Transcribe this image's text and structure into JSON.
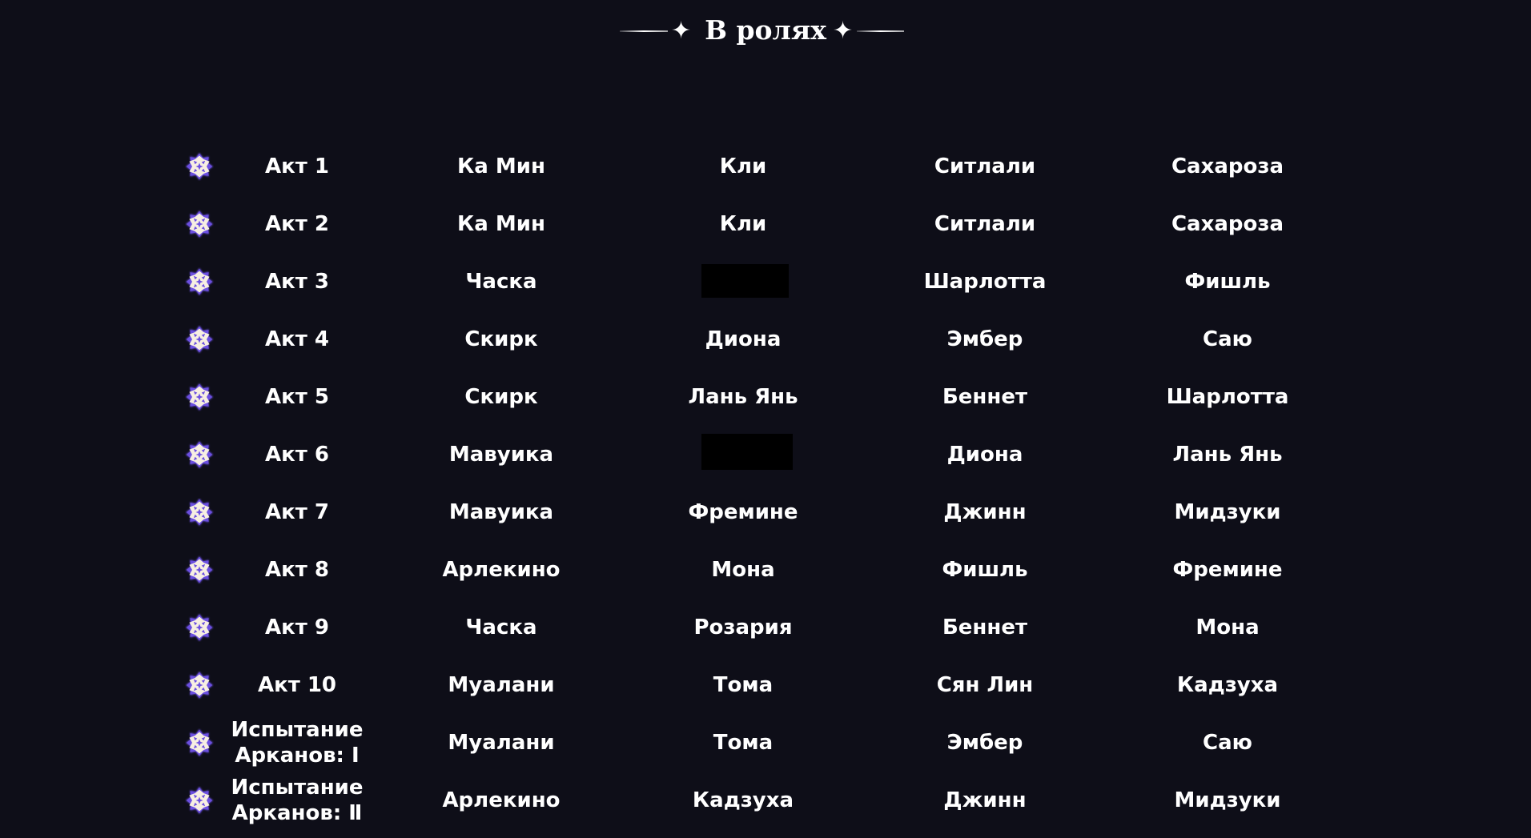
{
  "header": {
    "title": "В ролях",
    "decoration_icon": "sparkle-star-icon"
  },
  "colors": {
    "background": "#0e0e18",
    "icon_purple": "#6b4fe0",
    "icon_cream": "#f7efe2"
  },
  "rows": [
    {
      "label": "Акт 1",
      "cast": [
        "Ка Мин",
        "Кли",
        "Ситлали",
        "Сахароза"
      ]
    },
    {
      "label": "Акт 2",
      "cast": [
        "Ка Мин",
        "Кли",
        "Ситлали",
        "Сахароза"
      ]
    },
    {
      "label": "Акт 3",
      "cast": [
        "Часка",
        "",
        "Шарлотта",
        "Фишль"
      ],
      "redacted": [
        1
      ]
    },
    {
      "label": "Акт 4",
      "cast": [
        "Скирк",
        "Диона",
        "Эмбер",
        "Саю"
      ]
    },
    {
      "label": "Акт 5",
      "cast": [
        "Скирк",
        "Лань Янь",
        "Беннет",
        "Шарлотта"
      ]
    },
    {
      "label": "Акт 6",
      "cast": [
        "Мавуика",
        "",
        "Диона",
        "Лань Янь"
      ],
      "redacted": [
        1
      ]
    },
    {
      "label": "Акт 7",
      "cast": [
        "Мавуика",
        "Фремине",
        "Джинн",
        "Мидзуки"
      ]
    },
    {
      "label": "Акт 8",
      "cast": [
        "Арлекино",
        "Мона",
        "Фишль",
        "Фремине"
      ]
    },
    {
      "label": "Акт 9",
      "cast": [
        "Часка",
        "Розария",
        "Беннет",
        "Мона"
      ]
    },
    {
      "label": "Акт 10",
      "cast": [
        "Муалани",
        "Тома",
        "Сян Лин",
        "Кадзуха"
      ]
    },
    {
      "label": "Испытание Арканов: Ⅰ",
      "cast": [
        "Муалани",
        "Тома",
        "Эмбер",
        "Саю"
      ]
    },
    {
      "label": "Испытание Арканов: Ⅱ",
      "cast": [
        "Арлекино",
        "Кадзуха",
        "Джинн",
        "Мидзуки"
      ]
    }
  ]
}
